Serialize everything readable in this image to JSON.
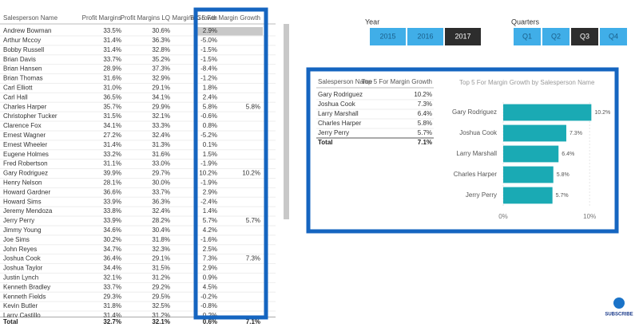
{
  "table": {
    "headers": [
      "Salesperson Name",
      "Profit Margins",
      "Profit Margins LQ",
      "Margins Growth",
      "Top 5 For Margin Growth"
    ],
    "rows": [
      [
        "Andrew Bowman",
        "33.5%",
        "30.6%",
        "2.9%"
      ],
      [
        "Arthur Mccoy",
        "31.4%",
        "36.3%",
        "-5.0%"
      ],
      [
        "Bobby Russell",
        "31.4%",
        "32.8%",
        "-1.5%"
      ],
      [
        "Brian Davis",
        "33.7%",
        "35.2%",
        "-1.5%"
      ],
      [
        "Brian Hansen",
        "28.9%",
        "37.3%",
        "-8.4%"
      ],
      [
        "Brian Thomas",
        "31.6%",
        "32.9%",
        "-1.2%"
      ],
      [
        "Carl Elliott",
        "31.0%",
        "29.1%",
        "1.8%"
      ],
      [
        "Carl Hall",
        "36.5%",
        "34.1%",
        "2.4%"
      ],
      [
        "Charles Harper",
        "35.7%",
        "29.9%",
        "5.8%",
        "5.8%"
      ],
      [
        "Christopher Tucker",
        "31.5%",
        "32.1%",
        "-0.6%"
      ],
      [
        "Clarence Fox",
        "34.1%",
        "33.3%",
        "0.8%"
      ],
      [
        "Ernest Wagner",
        "27.2%",
        "32.4%",
        "-5.2%"
      ],
      [
        "Ernest Wheeler",
        "31.4%",
        "31.3%",
        "0.1%"
      ],
      [
        "Eugene Holmes",
        "33.2%",
        "31.6%",
        "1.5%"
      ],
      [
        "Fred Robertson",
        "31.1%",
        "33.0%",
        "-1.9%"
      ],
      [
        "Gary Rodriguez",
        "39.9%",
        "29.7%",
        "10.2%",
        "10.2%"
      ],
      [
        "Henry Nelson",
        "28.1%",
        "30.0%",
        "-1.9%"
      ],
      [
        "Howard Gardner",
        "36.6%",
        "33.7%",
        "2.9%"
      ],
      [
        "Howard Sims",
        "33.9%",
        "36.3%",
        "-2.4%"
      ],
      [
        "Jeremy Mendoza",
        "33.8%",
        "32.4%",
        "1.4%"
      ],
      [
        "Jerry Perry",
        "33.9%",
        "28.2%",
        "5.7%",
        "5.7%"
      ],
      [
        "Jimmy Young",
        "34.6%",
        "30.4%",
        "4.2%"
      ],
      [
        "Joe Sims",
        "30.2%",
        "31.8%",
        "-1.6%"
      ],
      [
        "John Reyes",
        "34.7%",
        "32.3%",
        "2.5%"
      ],
      [
        "Joshua Cook",
        "36.4%",
        "29.1%",
        "7.3%",
        "7.3%"
      ],
      [
        "Joshua Taylor",
        "34.4%",
        "31.5%",
        "2.9%"
      ],
      [
        "Justin Lynch",
        "32.1%",
        "31.2%",
        "0.9%"
      ],
      [
        "Kenneth Bradley",
        "33.7%",
        "29.2%",
        "4.5%"
      ],
      [
        "Kenneth Fields",
        "29.3%",
        "29.5%",
        "-0.2%"
      ],
      [
        "Kevin Butler",
        "31.8%",
        "32.5%",
        "-0.8%"
      ],
      [
        "Larry Castillo",
        "31.4%",
        "31.2%",
        "0.2%"
      ]
    ],
    "total": [
      "Total",
      "32.7%",
      "32.1%",
      "0.6%",
      "7.1%"
    ]
  },
  "year_slicer": {
    "title": "Year",
    "options": [
      "2015",
      "2016",
      "2017"
    ],
    "selected": "2017"
  },
  "quarter_slicer": {
    "title": "Quarters",
    "options": [
      "Q1",
      "Q2",
      "Q3",
      "Q4"
    ],
    "selected": "Q3"
  },
  "small_table": {
    "headers": [
      "Salesperson Name",
      "Top 5 For Margin Growth"
    ],
    "rows": [
      [
        "Gary Rodriguez",
        "10.2%"
      ],
      [
        "Joshua Cook",
        "7.3%"
      ],
      [
        "Larry Marshall",
        "6.4%"
      ],
      [
        "Charles Harper",
        "5.8%"
      ],
      [
        "Jerry Perry",
        "5.7%"
      ]
    ],
    "total": [
      "Total",
      "7.1%"
    ]
  },
  "chart_data": {
    "type": "bar",
    "orientation": "horizontal",
    "title": "Top 5 For Margin Growth by Salesperson Name",
    "categories": [
      "Gary Rodriguez",
      "Joshua Cook",
      "Larry Marshall",
      "Charles Harper",
      "Jerry Perry"
    ],
    "values": [
      10.2,
      7.3,
      6.4,
      5.8,
      5.7
    ],
    "value_labels": [
      "10.2%",
      "7.3%",
      "6.4%",
      "5.8%",
      "5.7%"
    ],
    "color": "#1aaab4",
    "xlim": [
      0,
      11
    ],
    "xticks": [
      {
        "value": 0,
        "label": "0%"
      },
      {
        "value": 10,
        "label": "10%"
      }
    ],
    "grid": true
  },
  "subscribe": "SUBSCRIBE"
}
